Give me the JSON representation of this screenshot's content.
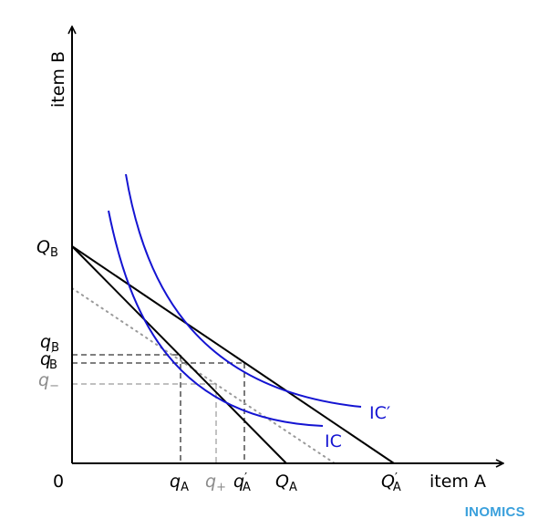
{
  "diagram": {
    "axis_x_label": "item A",
    "axis_y_label": "item B",
    "origin_label": "0",
    "y_intercept_label": {
      "main": "Q",
      "sub": "B"
    },
    "x_intercept_label": {
      "main": "Q",
      "sub": "A"
    },
    "x_intercept_new_label": {
      "main": "Q",
      "prime": "′",
      "sub": "A"
    },
    "q_a_label": {
      "main": "q",
      "sub": "A"
    },
    "q_plus_label": {
      "main": "q",
      "sub": "+"
    },
    "q_a_new_label": {
      "main": "q",
      "prime": "′",
      "sub": "A"
    },
    "q_b_label": {
      "main": "q",
      "sub": "B"
    },
    "q_b_new_label": {
      "main": "q",
      "prime": "′",
      "sub": "B"
    },
    "q_minus_label": {
      "main": "q",
      "sub": "−"
    },
    "curve_ic_label": "IC",
    "curve_ic_new_label": "IC′"
  },
  "colors": {
    "axis": "#000000",
    "budget_line": "#000000",
    "indifference_curve": "#1414d2",
    "dotted_line": "#9a9a9a",
    "guide_dashed": "#333333",
    "guide_grey": "#9a9a9a",
    "brand": "#3aa0dc"
  },
  "brand": "INOMICS"
}
